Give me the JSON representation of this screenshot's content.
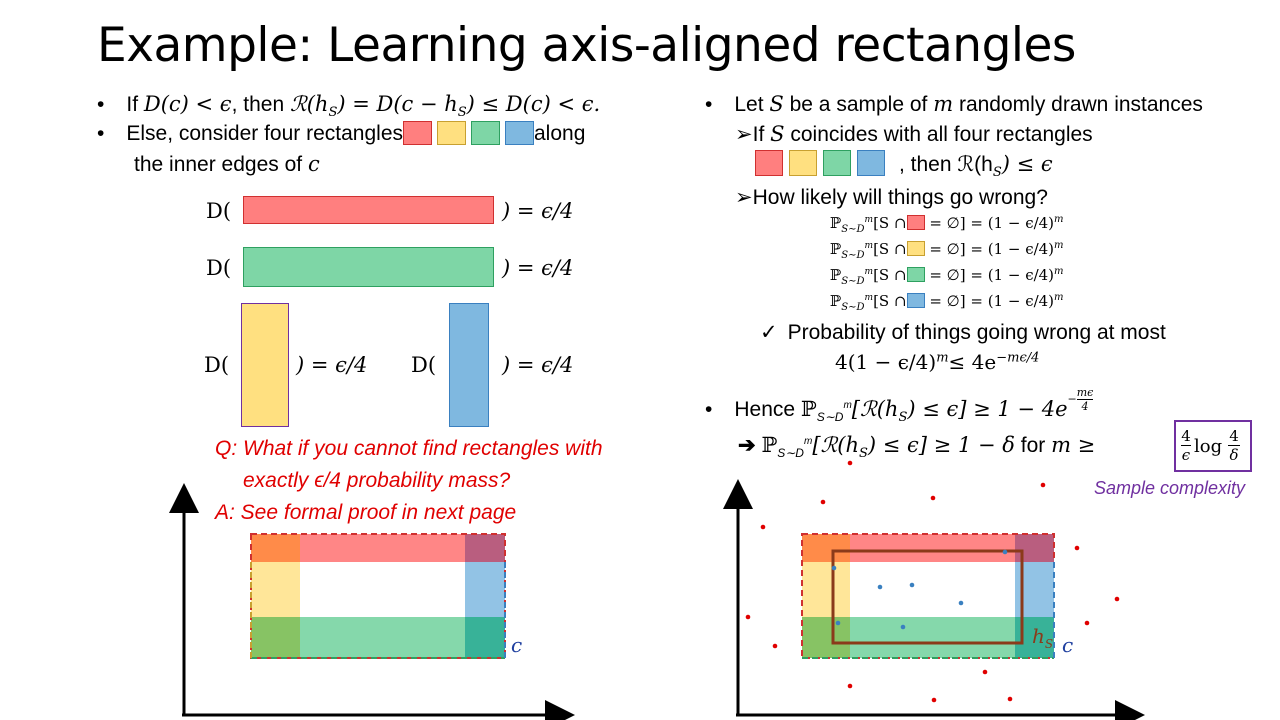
{
  "title": "Example: Learning axis-aligned rectangles",
  "left": {
    "bullet1": {
      "prefix": "If ",
      "math1": "D(c) < ϵ",
      "mid": ", then ",
      "math2": "ℛ(h",
      "sub": "S",
      "math3": ") = D(c − h",
      "sub2": "S",
      "math4": ") ≤ D(c) < ϵ."
    },
    "bullet2_pre": "Else, consider four rectangles",
    "bullet2_post": "along",
    "bullet2_line2_pre": "the inner edges of ",
    "bullet2_line2_math": "c",
    "d_open": "D(",
    "d_close": ") = ϵ/4",
    "question": "Q: What if you cannot find rectangles with",
    "question2": "exactly ϵ/4 probability mass?",
    "answer": "A: See formal proof in next page",
    "c_label": "c"
  },
  "right": {
    "bullet1_pre": "Let ",
    "bullet1_S": "S",
    "bullet1_mid": " be a sample of ",
    "bullet1_m": "m",
    "bullet1_post": " randomly drawn instances",
    "sub1_pre": "If ",
    "sub1_S": "S",
    "sub1_post": " coincides with all four rectangles",
    "sub1_then": ", then ℛ(h",
    "sub1_then_sub": "S",
    "sub1_then_end": ") ≤ ϵ",
    "sub2": "How likely will things go wrong?",
    "prob_lhs": "ℙ",
    "prob_lhs_sub": "S∼D",
    "prob_lhs_sup": "m",
    "prob_open": "[S ∩",
    "prob_rhs": "= ∅] = (1 − ϵ/4)",
    "prob_rhs_sup": "m",
    "check_text": "Probability of things going wrong at most",
    "bound_lhs": "4(1 − ϵ/4)",
    "bound_sup": "m",
    "bound_rhs": "≤ 4e",
    "bound_exp": "−mϵ/4",
    "hence_pre": "Hence ",
    "hence_math": "ℙ",
    "hence_sub": "S∼D",
    "hence_sup": "m",
    "hence_body": "[ℛ(h",
    "hence_body_sub": "S",
    "hence_body_end": ") ≤ ϵ] ≥ 1 − 4e",
    "hence_exp_num": "mϵ",
    "hence_exp_den": "4",
    "arrow_math": "ℙ",
    "arrow_sub": "S∼D",
    "arrow_sup": "m",
    "arrow_body": "[ℛ(h",
    "arrow_body_sub": "S",
    "arrow_body_end": ") ≤ ϵ] ≥ 1 − δ",
    "arrow_for": " for ",
    "arrow_m": "m ≥",
    "frac1_num": "4",
    "frac1_den": "ϵ",
    "log": "log",
    "frac2_num": "4",
    "frac2_den": "δ",
    "sample_complexity": "Sample complexity",
    "hs_label": "h",
    "hs_sub": "S",
    "c_label": "c"
  },
  "colors": {
    "red": "#FF7F7F",
    "yellow": "#FFE080",
    "green": "#7ED6A6",
    "blue": "#7FB8E0",
    "purple": "#7030A0",
    "question_red": "#E00000",
    "hs_brown": "#8B3A1A"
  }
}
